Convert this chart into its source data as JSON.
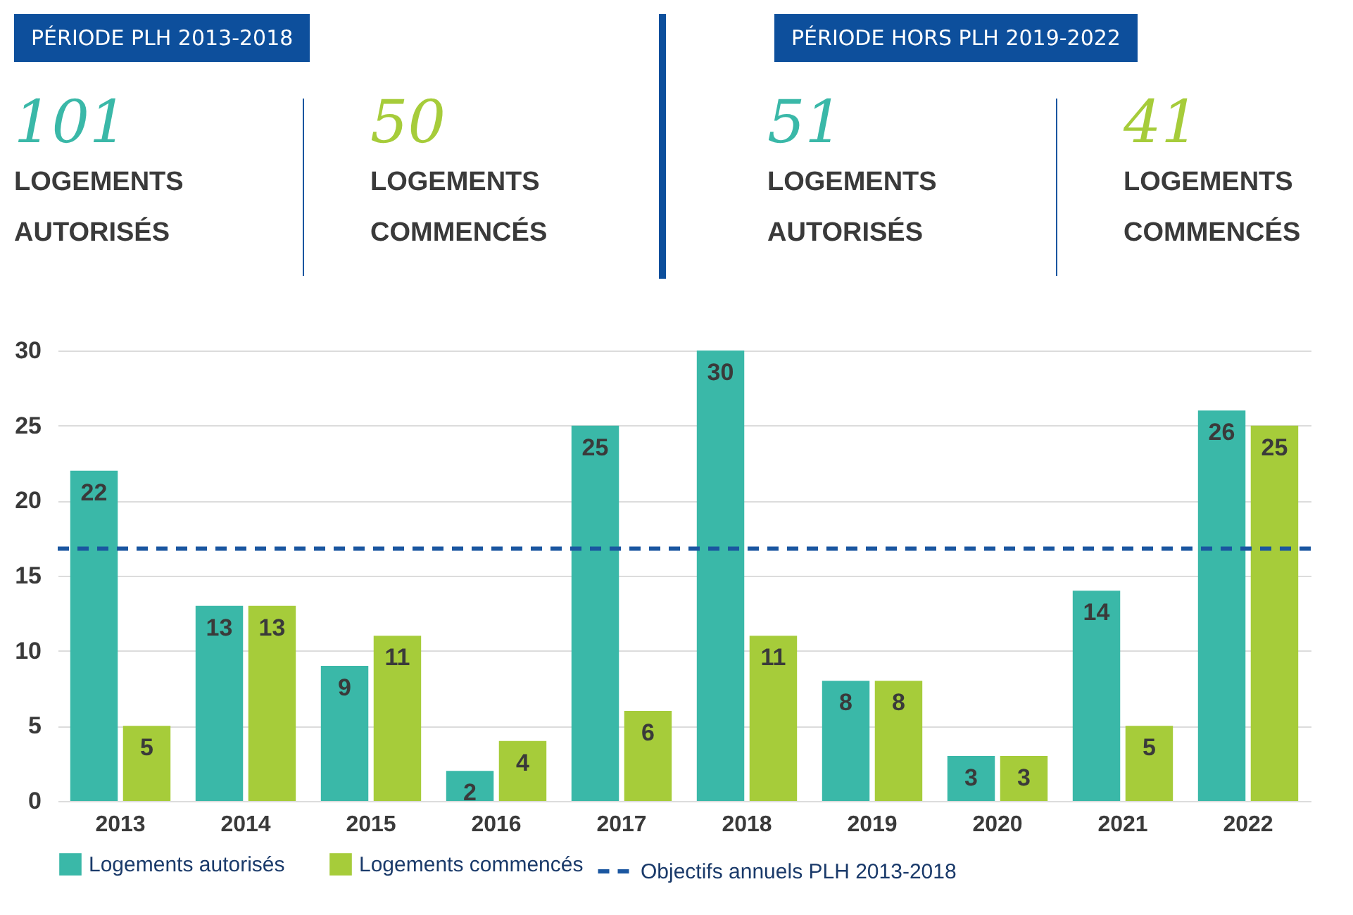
{
  "chart_data": {
    "type": "bar",
    "categories": [
      "2013",
      "2014",
      "2015",
      "2016",
      "2017",
      "2018",
      "2019",
      "2020",
      "2021",
      "2022"
    ],
    "series": [
      {
        "name": "Logements autorisés",
        "color": "#3ab8a8",
        "values": [
          22,
          13,
          9,
          2,
          25,
          30,
          8,
          3,
          14,
          26
        ]
      },
      {
        "name": "Logements commencés",
        "color": "#a6cc3a",
        "values": [
          5,
          13,
          11,
          4,
          6,
          11,
          8,
          3,
          5,
          25
        ]
      }
    ],
    "ylim": [
      0,
      30
    ],
    "yticks": [
      0,
      5,
      10,
      15,
      20,
      25,
      30
    ],
    "grid": "y",
    "data_labels": true,
    "legend": "bottom",
    "ref_lines": [
      {
        "axis": "y",
        "value": 16.8,
        "label": "Objectifs annuels PLH 2013-2018",
        "color": "#1a56a0",
        "line_style": "dashed"
      }
    ],
    "annotations": [
      "PÉRIODE PLH 2013-2018",
      "101",
      "LOGEMENTS AUTORISÉS",
      "50",
      "LOGEMENTS COMMENCÉS",
      "PÉRIODE HORS PLH 2019-2022",
      "51",
      "LOGEMENTS AUTORISÉS",
      "41",
      "LOGEMENTS COMMENCÉS"
    ]
  }
}
